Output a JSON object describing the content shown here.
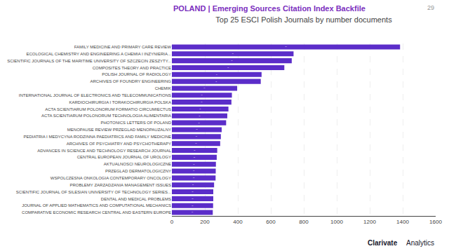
{
  "chart_data": {
    "type": "bar",
    "orientation": "horizontal",
    "title": "Top 25 ESCI Polish Journals by number documents",
    "annotations": [
      "POLAND | Emerging Sources Citation Index Backfile",
      "29",
      "Clarivate",
      "Analytics"
    ],
    "categories": [
      "FAMILY MEDICINE AND PRIMARY CARE REVIEW",
      "ECOLOGICAL CHEMISTRY AND ENGINEERING A CHEMIA I INZYNIERIA...",
      "SCIENTIFIC JOURNALS OF THE MARITIME UNIVERSITY OF SZCZECIN ZESZYTY...",
      "COMPOSITES THEORY AND PRACTICE",
      "POLISH JOURNAL OF RADIOLOGY",
      "ARCHIVES OF FOUNDRY ENGINEERING",
      "CHEMIK",
      "INTERNATIONAL JOURNAL OF ELECTRONICS AND TELECOMMUNICATIONS",
      "KARDIOCHIRURGIA I TORAKOCHIRURGIA POLSKA",
      "ACTA SCIENTIARUM POLONORUM FORMATIO CIRCUMIECTUS",
      "ACTA SCIENTIARUM POLONORUM TECHNOLOGIA ALIMENTARIA",
      "PHOTONICS LETTERS OF POLAND",
      "MENOPAUSE REVIEW PRZEGLAD MENOPAUZALNY",
      "PEDIATRIA I MEDYCYNA RODZINNA PAEDIATRICS AND FAMILY MEDICINE",
      "ARCHIVES OF PSYCHIATRY AND PSYCHOTHERAPY",
      "ADVANCES IN SCIENCE AND TECHNOLOGY RESEARCH JOURNAL",
      "CENTRAL EUROPEAN JOURNAL OF UROLOGY",
      "AKTUALNOSCI NEUROLOGICZNE",
      "PRZEGLAD DERMATOLOGICZNY",
      "WSPOLCZESNA ONKOLOGIA CONTEMPORARY ONCOLOGY",
      "PROBLEMY ZARZADZANIA MANAGEMENT ISSUES",
      "SCIENTIFIC JOURNAL OF SILESIAN UNIVERSITY OF TECHNOLOGY SERIES...",
      "DENTAL AND MEDICAL PROBLEMS",
      "JOURNAL OF APPLIED MATHEMATICS AND COMPUTATIONAL MECHANICS",
      "COMPARATIVE ECONOMIC RESEARCH CENTRAL AND EASTERN EUROPE"
    ],
    "values": [
      1384,
      738,
      727,
      682,
      544,
      539,
      396,
      364,
      361,
      343,
      336,
      329,
      302,
      297,
      293,
      275,
      272,
      267,
      266,
      265,
      256,
      251,
      251,
      250,
      248
    ],
    "color": "#5b2dc9",
    "data_labels": true,
    "xlim": [
      0,
      1600
    ],
    "xticks": [
      0,
      200,
      400,
      600,
      800,
      1000,
      1200,
      1400,
      1600
    ],
    "grid": true
  }
}
